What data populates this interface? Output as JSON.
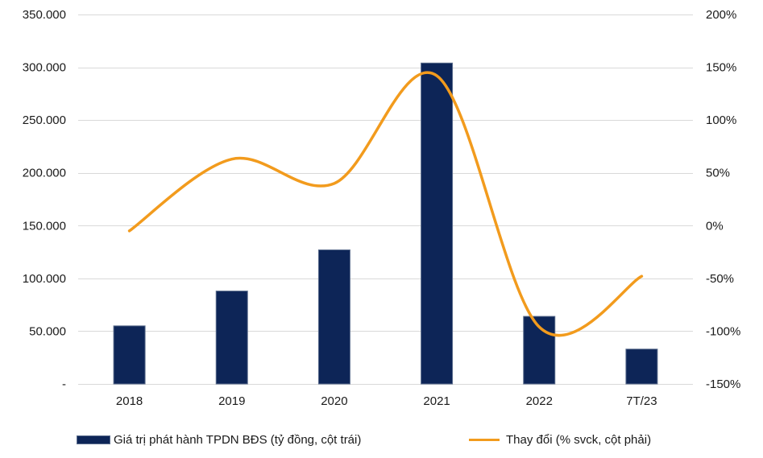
{
  "chart_data": {
    "type": "bar",
    "categories": [
      "2018",
      "2019",
      "2020",
      "2021",
      "2022",
      "7T/23"
    ],
    "series": [
      {
        "name": "Giá trị phát hành TPDN BĐS (tỷ đồng, cột trái)",
        "type": "bar",
        "axis": "left",
        "color": "#0d2557",
        "values": [
          55000,
          88000,
          127000,
          304000,
          64000,
          33000
        ]
      },
      {
        "name": "Thay đổi (% svck, cột phải)",
        "type": "line",
        "axis": "right",
        "color": "#f29b1d",
        "smooth": true,
        "values": [
          -5,
          63,
          40,
          142,
          -96,
          -48
        ]
      }
    ],
    "left_axis": {
      "ylim": [
        0,
        350000
      ],
      "ticks": [
        {
          "value": 0,
          "label": "-"
        },
        {
          "value": 50000,
          "label": "50.000"
        },
        {
          "value": 100000,
          "label": "100.000"
        },
        {
          "value": 150000,
          "label": "150.000"
        },
        {
          "value": 200000,
          "label": "200.000"
        },
        {
          "value": 250000,
          "label": "250.000"
        },
        {
          "value": 300000,
          "label": "300.000"
        },
        {
          "value": 350000,
          "label": "350.000"
        }
      ]
    },
    "right_axis": {
      "ylim": [
        -150,
        200
      ],
      "ticks": [
        {
          "value": -150,
          "label": "-150%"
        },
        {
          "value": -100,
          "label": "-100%"
        },
        {
          "value": -50,
          "label": "-50%"
        },
        {
          "value": 0,
          "label": "0%"
        },
        {
          "value": 50,
          "label": "50%"
        },
        {
          "value": 100,
          "label": "100%"
        },
        {
          "value": 150,
          "label": "150%"
        },
        {
          "value": 200,
          "label": "200%"
        }
      ]
    },
    "grid": true,
    "gridline_color": "#d9d9d9",
    "legend_position": "bottom"
  }
}
